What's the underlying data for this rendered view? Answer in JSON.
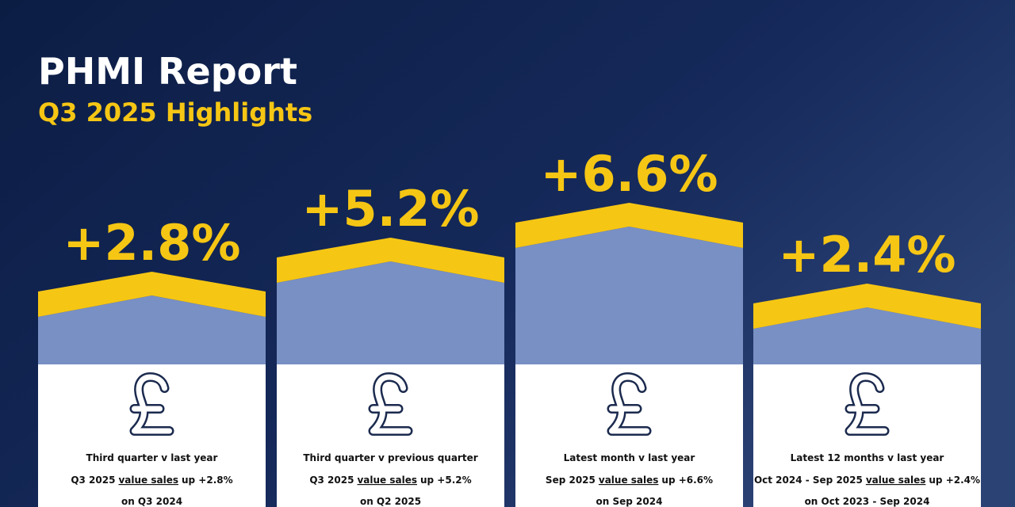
{
  "header": {
    "title": "PHMI Report",
    "subtitle": "Q3 2025 Highlights"
  },
  "cards": [
    {
      "headline": "+2.8%",
      "caption": "Third quarter v last year",
      "line_prefix": "Q3 2025",
      "line_link": "value sales",
      "line_suffix": "up +2.8%",
      "line_end": "on Q3 2024"
    },
    {
      "headline": "+5.2%",
      "caption": "Third quarter v previous quarter",
      "line_prefix": "Q3 2025",
      "line_link": "value sales",
      "line_suffix": "up +5.2%",
      "line_end": "on Q2 2025"
    },
    {
      "headline": "+6.6%",
      "caption": "Latest month v last year",
      "line_prefix": "Sep 2025",
      "line_link": "value sales",
      "line_suffix": "up +6.6%",
      "line_end": "on Sep 2024"
    },
    {
      "headline": "+2.4%",
      "caption": "Latest 12 months v last year",
      "line_prefix": "Oct 2024 - Sep 2025",
      "line_link": "value sales",
      "line_suffix": "up +2.4%",
      "line_end": "on Oct 2023 - Sep 2024"
    }
  ]
}
